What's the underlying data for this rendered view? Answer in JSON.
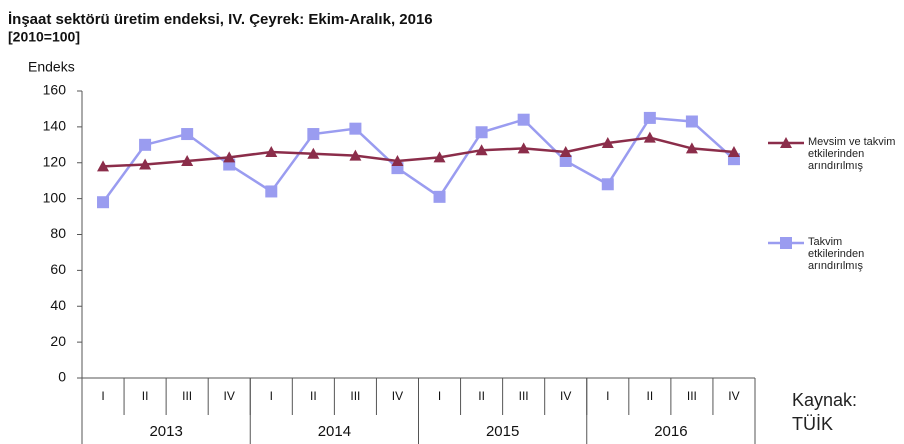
{
  "chart_data": {
    "type": "line",
    "title": "İnşaat sektörü üretim endeksi, IV. Çeyrek: Ekim-Aralık, 2016",
    "subtitle": "[2010=100]",
    "y_label": "Endeks",
    "categories": [
      "I",
      "II",
      "III",
      "IV",
      "I",
      "II",
      "III",
      "IV",
      "I",
      "II",
      "III",
      "IV",
      "I",
      "II",
      "III",
      "IV"
    ],
    "years": [
      "2013",
      "2014",
      "2015",
      "2016"
    ],
    "series": [
      {
        "name": "Mevsim ve takvim etkilerinden arındırılmış",
        "color": "#8b2d4a",
        "marker": "triangle",
        "values": [
          118,
          119,
          121,
          123,
          126,
          125,
          124,
          121,
          123,
          127,
          128,
          126,
          131,
          134,
          128,
          126
        ]
      },
      {
        "name": "Takvim etkilerinden arındırılmış",
        "color": "#9a9cf0",
        "marker": "square",
        "values": [
          98,
          130,
          136,
          119,
          104,
          136,
          139,
          117,
          101,
          137,
          144,
          121,
          108,
          145,
          143,
          122
        ]
      }
    ],
    "ylim": [
      0,
      160
    ],
    "yticks": [
      0,
      20,
      40,
      60,
      80,
      100,
      120,
      140,
      160
    ],
    "grid": false,
    "source": "Kaynak: TÜİK"
  }
}
